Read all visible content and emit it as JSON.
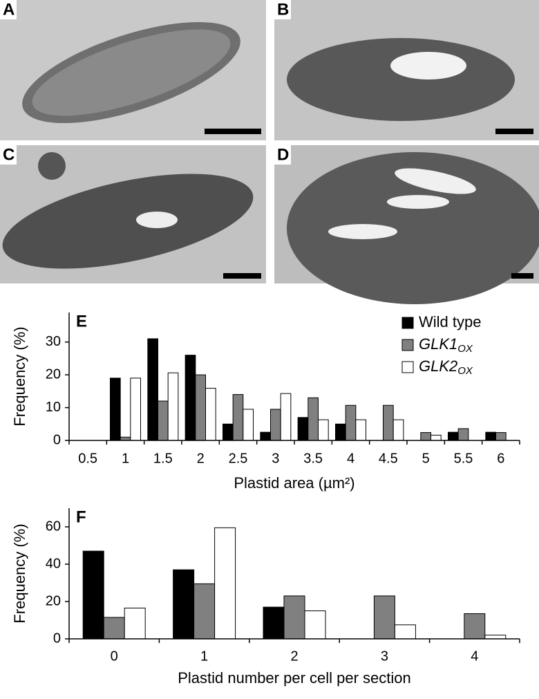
{
  "panels": {
    "labels": [
      "A",
      "B",
      "C",
      "D"
    ]
  },
  "chart_data": [
    {
      "type": "bar",
      "label": "E",
      "ylabel": "Frequency (%)",
      "xlabel": "Plastid area (µm²)",
      "categories": [
        "0.5",
        "1",
        "1.5",
        "2",
        "2.5",
        "3",
        "3.5",
        "4",
        "4.5",
        "5",
        "5.5",
        "6"
      ],
      "series": [
        {
          "name": "Wild type",
          "color": "#000000",
          "values": [
            0,
            19,
            31,
            26,
            5,
            2.5,
            7,
            5,
            0,
            0,
            2.5,
            2.5
          ]
        },
        {
          "name": "GLK1",
          "name_sub": "OX",
          "color": "#808080",
          "values": [
            0,
            1,
            12,
            20,
            14,
            9.5,
            13,
            10.7,
            10.7,
            2.4,
            3.6,
            2.4
          ]
        },
        {
          "name": "GLK2",
          "name_sub": "OX",
          "color": "#ffffff",
          "values": [
            0,
            19,
            20.6,
            15.9,
            9.5,
            14.3,
            6.3,
            6.3,
            6.3,
            1.6,
            0,
            0
          ]
        }
      ],
      "ylim": [
        0,
        39
      ],
      "yticks": [
        0,
        10,
        20,
        30
      ],
      "legend": "top-right"
    },
    {
      "type": "bar",
      "label": "F",
      "ylabel": "Frequency (%)",
      "xlabel": "Plastid number per cell per section",
      "categories": [
        "0",
        "1",
        "2",
        "3",
        "4"
      ],
      "series": [
        {
          "name": "Wild type",
          "color": "#000000",
          "values": [
            47,
            37,
            17,
            0,
            0
          ]
        },
        {
          "name": "GLK1",
          "name_sub": "OX",
          "color": "#808080",
          "values": [
            11.5,
            29.5,
            23,
            23,
            13.5
          ]
        },
        {
          "name": "GLK2",
          "name_sub": "OX",
          "color": "#ffffff",
          "values": [
            16.5,
            59.5,
            15,
            7.5,
            2
          ]
        }
      ],
      "ylim": [
        0,
        70
      ],
      "yticks": [
        0,
        20,
        40,
        60
      ]
    }
  ]
}
